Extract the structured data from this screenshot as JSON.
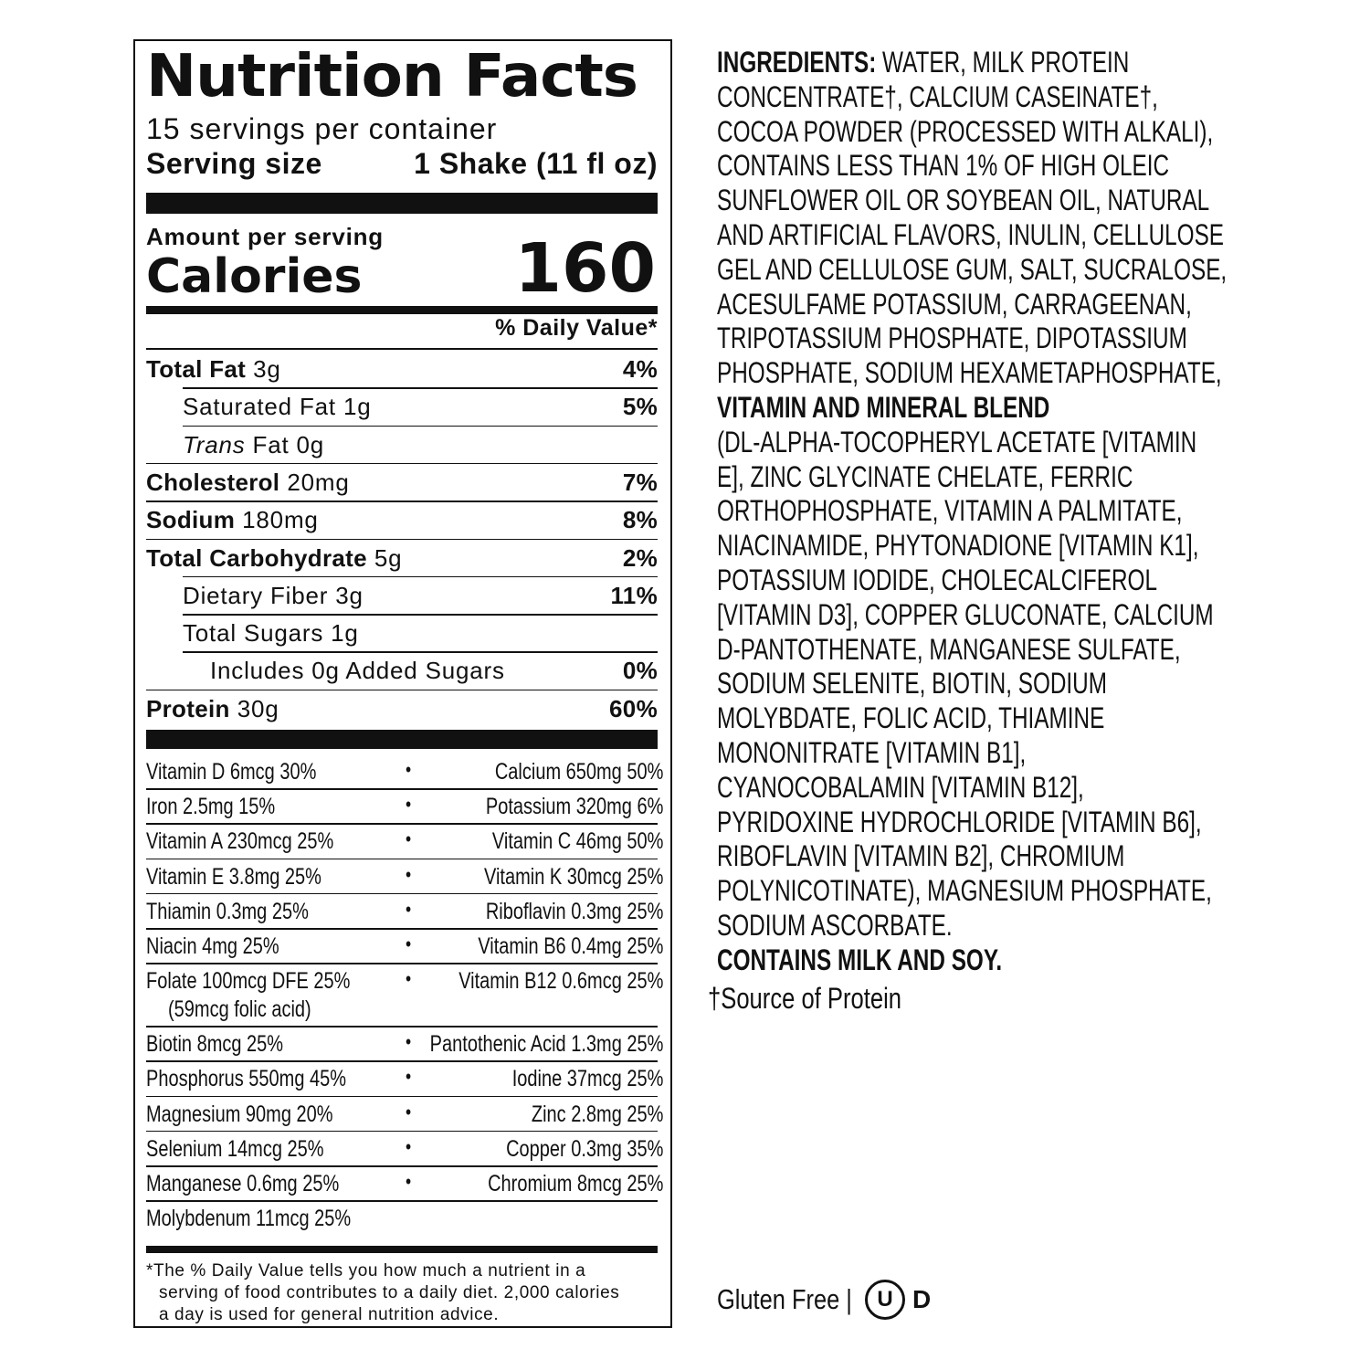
{
  "label": {
    "title": "Nutrition Facts",
    "servings": "15 servings per container",
    "serving_size_label": "Serving size",
    "serving_size_value": "1 Shake (11 fl oz)",
    "amount_per_serving": "Amount per serving",
    "calories_label": "Calories",
    "calories_value": "160",
    "dv_header": "% Daily Value*",
    "nutrients": [
      {
        "bold": "Total Fat",
        "amount": " 3g",
        "dv": "4%",
        "indent": 0
      },
      {
        "bold": "",
        "amount": "Saturated Fat 1g",
        "dv": "5%",
        "indent": 1
      },
      {
        "bold": "",
        "italic": "Trans",
        "amount": " Fat 0g",
        "dv": "",
        "indent": 1
      },
      {
        "bold": "Cholesterol",
        "amount": " 20mg",
        "dv": "7%",
        "indent": 0
      },
      {
        "bold": "Sodium",
        "amount": " 180mg",
        "dv": "8%",
        "indent": 0
      },
      {
        "bold": "Total Carbohydrate",
        "amount": " 5g",
        "dv": "2%",
        "indent": 0
      },
      {
        "bold": "",
        "amount": "Dietary Fiber 3g",
        "dv": "11%",
        "indent": 1
      },
      {
        "bold": "",
        "amount": "Total Sugars 1g",
        "dv": "",
        "indent": 1
      },
      {
        "bold": "",
        "amount": "Includes 0g Added Sugars",
        "dv": "0%",
        "indent": 2
      },
      {
        "bold": "Protein",
        "amount": " 30g",
        "dv": "60%",
        "indent": 0
      }
    ],
    "vitamins": [
      {
        "left": "Vitamin D 6mcg 30%",
        "right": "Calcium 650mg 50%"
      },
      {
        "left": "Iron 2.5mg 15%",
        "right": "Potassium 320mg 6%"
      },
      {
        "left": "Vitamin A 230mcg 25%",
        "right": "Vitamin C 46mg 50%"
      },
      {
        "left": "Vitamin E 3.8mg 25%",
        "right": "Vitamin K 30mcg 25%"
      },
      {
        "left": "Thiamin 0.3mg 25%",
        "right": "Riboflavin 0.3mg 25%"
      },
      {
        "left": "Niacin 4mg 25%",
        "right": "Vitamin B6 0.4mg 25%"
      },
      {
        "left": "Folate 100mcg DFE 25%",
        "left2": "(59mcg folic acid)",
        "right": "Vitamin B12 0.6mcg 25%"
      },
      {
        "left": "Biotin 8mcg 25%",
        "right": "Pantothenic Acid 1.3mg 25%"
      },
      {
        "left": "Phosphorus 550mg 45%",
        "right": "Iodine 37mcg 25%"
      },
      {
        "left": "Magnesium 90mg 20%",
        "right": "Zinc 2.8mg 25%"
      },
      {
        "left": "Selenium 14mcg 25%",
        "right": "Copper 0.3mg 35%"
      },
      {
        "left": "Manganese 0.6mg 25%",
        "right": "Chromium 8mcg 25%"
      },
      {
        "left": "Molybdenum 11mcg 25%",
        "right": ""
      }
    ],
    "bullet": "•",
    "footnote": [
      "*The % Daily Value tells you how much a nutrient in a",
      "serving of food contributes to a daily diet. 2,000 calories",
      "a day is used for general nutrition advice."
    ]
  },
  "ingredients": {
    "lines": [
      [
        {
          "b": "INGREDIENTS:"
        },
        {
          "t": " WATER, MILK PROTEIN"
        }
      ],
      [
        {
          "t": "CONCENTRATE†, CALCIUM CASEINATE†,"
        }
      ],
      [
        {
          "t": "COCOA POWDER (PROCESSED WITH ALKALI),"
        }
      ],
      [
        {
          "t": "CONTAINS LESS THAN 1% OF HIGH OLEIC"
        }
      ],
      [
        {
          "t": "SUNFLOWER OIL OR SOYBEAN OIL, NATURAL"
        }
      ],
      [
        {
          "t": "AND ARTIFICIAL FLAVORS, INULIN, CELLULOSE"
        }
      ],
      [
        {
          "t": "GEL AND CELLULOSE GUM, SALT, SUCRALOSE,"
        }
      ],
      [
        {
          "t": "ACESULFAME POTASSIUM, CARRAGEENAN,"
        }
      ],
      [
        {
          "t": "TRIPOTASSIUM PHOSPHATE, DIPOTASSIUM"
        }
      ],
      [
        {
          "t": "PHOSPHATE, SODIUM HEXAMETAPHOSPHATE,"
        }
      ],
      [
        {
          "b": "VITAMIN AND MINERAL BLEND"
        }
      ],
      [
        {
          "t": "(DL-ALPHA-TOCOPHERYL ACETATE [VITAMIN"
        }
      ],
      [
        {
          "t": "E], ZINC GLYCINATE CHELATE, FERRIC"
        }
      ],
      [
        {
          "t": "ORTHOPHOSPHATE, VITAMIN A PALMITATE,"
        }
      ],
      [
        {
          "t": "NIACINAMIDE, PHYTONADIONE [VITAMIN K1],"
        }
      ],
      [
        {
          "t": "POTASSIUM IODIDE, CHOLECALCIFEROL"
        }
      ],
      [
        {
          "t": "[VITAMIN D3], COPPER GLUCONATE, CALCIUM"
        }
      ],
      [
        {
          "t": "D-PANTOTHENATE, MANGANESE SULFATE,"
        }
      ],
      [
        {
          "t": "SODIUM SELENITE, BIOTIN, SODIUM"
        }
      ],
      [
        {
          "t": "MOLYBDATE, FOLIC ACID, THIAMINE"
        }
      ],
      [
        {
          "t": "MONONITRATE [VITAMIN B1],"
        }
      ],
      [
        {
          "t": "CYANOCOBALAMIN [VITAMIN B12],"
        }
      ],
      [
        {
          "t": "PYRIDOXINE HYDROCHLORIDE [VITAMIN B6],"
        }
      ],
      [
        {
          "t": "RIBOFLAVIN [VITAMIN B2], CHROMIUM"
        }
      ],
      [
        {
          "t": "POLYNICOTINATE), MAGNESIUM PHOSPHATE,"
        }
      ],
      [
        {
          "t": "SODIUM ASCORBATE."
        }
      ],
      [
        {
          "b": "CONTAINS MILK AND SOY."
        }
      ]
    ],
    "source_note": "†Source of Protein"
  },
  "badges": {
    "gluten_free": "Gluten Free |",
    "kosher_u": "U",
    "kosher_d": "D"
  }
}
